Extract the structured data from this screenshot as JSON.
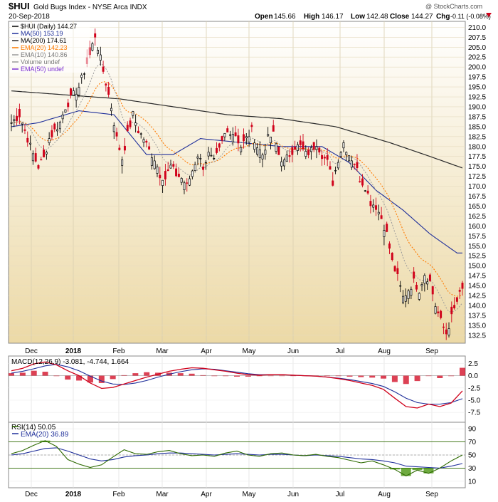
{
  "header": {
    "symbol": "$HUI",
    "name": "Gold Bugs Index - NYSE Arca INDX",
    "date": "20-Sep-2018",
    "brand": "@ StockCharts.com",
    "open_label": "Open",
    "open": "145.66",
    "high_label": "High",
    "high": "146.17",
    "low_label": "Low",
    "low": "142.48",
    "close_label": "Close",
    "close": "144.27",
    "chg_label": "Chg",
    "chg": "-0.11 (-0.08%)"
  },
  "colors": {
    "price_up": "#000000",
    "price_down": "#d0021b",
    "ma50": "#1f2f9a",
    "ma200": "#2a2a2a",
    "ema20": "#ff7a00",
    "ema10": "#9a9a9a",
    "macd": "#d0021b",
    "signal": "#1f2f9a",
    "histogram": "#d0021b",
    "rsi": "#2d6a00",
    "rsi_fill": "#3f8f00",
    "rsi_ema": "#1f2f9a",
    "price_bg_top": "#ffffff",
    "price_bg_bottom": "#ecd9a6"
  },
  "chart_data": [
    {
      "type": "candlestick",
      "title": "$HUI (Daily) 144.27",
      "x_labels": [
        "Dec",
        "2018",
        "Feb",
        "Mar",
        "Apr",
        "May",
        "Jun",
        "Jul",
        "Aug",
        "Sep"
      ],
      "y_ticks": [
        "132.5",
        "135.0",
        "137.5",
        "140.0",
        "142.5",
        "145.0",
        "147.5",
        "150.0",
        "152.5",
        "155.0",
        "157.5",
        "160.0",
        "162.5",
        "165.0",
        "167.5",
        "170.0",
        "172.5",
        "175.0",
        "177.5",
        "180.0",
        "182.5",
        "185.0",
        "187.5",
        "190.0",
        "192.5",
        "195.0",
        "197.5",
        "200.0",
        "202.5",
        "205.0",
        "207.5",
        "210.0"
      ],
      "ylim": [
        130.5,
        211.5
      ],
      "legend": [
        {
          "label": "$HUI (Daily) 144.27",
          "color": "#000000"
        },
        {
          "label": "MA(50) 153.19",
          "color": "#1f2f9a"
        },
        {
          "label": "MA(200) 174.61",
          "color": "#2a2a2a"
        },
        {
          "label": "EMA(20) 142.23",
          "color": "#ff7a00"
        },
        {
          "label": "EMA(10) 140.86",
          "color": "#9a9a9a"
        },
        {
          "label": "Volume undef",
          "color": "#9a9a9a"
        },
        {
          "label": "EMA(50) undef",
          "color": "#7b2fd0"
        }
      ],
      "close_anchors": [
        [
          0,
          186
        ],
        [
          3,
          188
        ],
        [
          5,
          184
        ],
        [
          8,
          178
        ],
        [
          10,
          175
        ],
        [
          12,
          177
        ],
        [
          14,
          182
        ],
        [
          16,
          184
        ],
        [
          18,
          186
        ],
        [
          20,
          190
        ],
        [
          23,
          193
        ],
        [
          25,
          195
        ],
        [
          27,
          199
        ],
        [
          29,
          203
        ],
        [
          31,
          208
        ],
        [
          33,
          202
        ],
        [
          35,
          196
        ],
        [
          37,
          190
        ],
        [
          39,
          182
        ],
        [
          41,
          177
        ],
        [
          43,
          183
        ],
        [
          45,
          188
        ],
        [
          47,
          184
        ],
        [
          49,
          182
        ],
        [
          51,
          179
        ],
        [
          53,
          177
        ],
        [
          55,
          173
        ],
        [
          57,
          172
        ],
        [
          59,
          175
        ],
        [
          61,
          173
        ],
        [
          63,
          172
        ],
        [
          65,
          170
        ],
        [
          67,
          174
        ],
        [
          69,
          178
        ],
        [
          71,
          175
        ],
        [
          73,
          178
        ],
        [
          75,
          176
        ],
        [
          77,
          179
        ],
        [
          79,
          183
        ],
        [
          81,
          184
        ],
        [
          83,
          183
        ],
        [
          85,
          180
        ],
        [
          87,
          182
        ],
        [
          89,
          184
        ],
        [
          91,
          180
        ],
        [
          93,
          178
        ],
        [
          95,
          182
        ],
        [
          97,
          183
        ],
        [
          99,
          178
        ],
        [
          101,
          176
        ],
        [
          103,
          178
        ],
        [
          105,
          180
        ],
        [
          107,
          180
        ],
        [
          109,
          178
        ],
        [
          111,
          179
        ],
        [
          113,
          181
        ],
        [
          115,
          178
        ],
        [
          117,
          176
        ],
        [
          119,
          171
        ],
        [
          121,
          177
        ],
        [
          123,
          181
        ],
        [
          125,
          178
        ],
        [
          127,
          176
        ],
        [
          129,
          172
        ],
        [
          131,
          170
        ],
        [
          133,
          166
        ],
        [
          135,
          165
        ],
        [
          137,
          162
        ],
        [
          139,
          158
        ],
        [
          141,
          151
        ],
        [
          143,
          147
        ],
        [
          145,
          142
        ],
        [
          147,
          144
        ],
        [
          149,
          146
        ],
        [
          151,
          144
        ],
        [
          153,
          148
        ],
        [
          155,
          146
        ],
        [
          157,
          140
        ],
        [
          159,
          136
        ],
        [
          161,
          133
        ],
        [
          163,
          137
        ],
        [
          165,
          141
        ],
        [
          167,
          144.27
        ]
      ],
      "ma50": [
        [
          0,
          185
        ],
        [
          10,
          186
        ],
        [
          25,
          189
        ],
        [
          38,
          188
        ],
        [
          50,
          178
        ],
        [
          60,
          178
        ],
        [
          70,
          182
        ],
        [
          85,
          181
        ],
        [
          100,
          180
        ],
        [
          115,
          180
        ],
        [
          125,
          176
        ],
        [
          135,
          169
        ],
        [
          145,
          164
        ],
        [
          155,
          158
        ],
        [
          165,
          153.2
        ]
      ],
      "ma200": [
        [
          0,
          194
        ],
        [
          20,
          193
        ],
        [
          40,
          192
        ],
        [
          60,
          190
        ],
        [
          80,
          188
        ],
        [
          100,
          187
        ],
        [
          120,
          185
        ],
        [
          140,
          181
        ],
        [
          155,
          177.5
        ],
        [
          167,
          174.6
        ]
      ],
      "ema20_last": 142.23,
      "ema10_last": 140.86
    },
    {
      "type": "line",
      "title": "MACD(12,26,9) -3.081, -4.744, 1.664",
      "y_ticks": [
        "2.5",
        "0.0",
        "-2.5",
        "-5.0",
        "-7.5"
      ],
      "ylim": [
        -9.5,
        4.0
      ],
      "series": [
        {
          "name": "MACD",
          "values": [
            1.0,
            1.5,
            2.4,
            2.8,
            2.2,
            1.0,
            0.0,
            -1.5,
            -2.6,
            -2.4,
            -1.7,
            -1.0,
            -0.3,
            0.3,
            0.9,
            1.3,
            1.6,
            1.5,
            1.2,
            0.9,
            0.5,
            0.2,
            0.1,
            0.2,
            0.2,
            0.1,
            0.0,
            -0.1,
            -0.3,
            -0.6,
            -1.0,
            -1.5,
            -2.0,
            -2.8,
            -4.6,
            -6.3,
            -6.6,
            -5.8,
            -6.3,
            -5.6,
            -3.1
          ]
        },
        {
          "name": "Signal",
          "values": [
            0.5,
            0.9,
            1.4,
            2.0,
            2.3,
            1.8,
            1.0,
            -0.1,
            -1.1,
            -1.7,
            -1.8,
            -1.5,
            -1.0,
            -0.3,
            0.3,
            0.8,
            1.2,
            1.4,
            1.3,
            1.0,
            0.7,
            0.4,
            0.2,
            0.2,
            0.2,
            0.1,
            0.0,
            -0.1,
            -0.3,
            -0.5,
            -0.8,
            -1.2,
            -1.6,
            -2.2,
            -3.3,
            -4.6,
            -5.5,
            -5.8,
            -5.8,
            -5.5,
            -4.7
          ]
        }
      ],
      "histogram_last": 1.664
    },
    {
      "type": "line",
      "title": "RSI(14) 50.05",
      "y_ticks": [
        "90",
        "70",
        "50",
        "30",
        "10"
      ],
      "ylim": [
        0,
        100
      ],
      "series": [
        {
          "name": "RSI",
          "values": [
            52,
            57,
            65,
            72,
            63,
            43,
            36,
            31,
            35,
            47,
            58,
            52,
            51,
            55,
            57,
            52,
            49,
            50,
            48,
            53,
            56,
            50,
            48,
            52,
            53,
            50,
            49,
            51,
            48,
            46,
            42,
            38,
            41,
            35,
            28,
            18,
            27,
            22,
            30,
            41,
            50
          ]
        },
        {
          "name": "EMA",
          "values": [
            50,
            52,
            56,
            60,
            61,
            56,
            50,
            44,
            41,
            43,
            47,
            49,
            50,
            52,
            53,
            53,
            52,
            51,
            50,
            51,
            52,
            51,
            50,
            51,
            51,
            50,
            49,
            50,
            49,
            48,
            46,
            44,
            43,
            41,
            38,
            33,
            32,
            31,
            30,
            33,
            37
          ]
        }
      ],
      "rsi_last": 50.05,
      "ema_label": "EMA(20) 36.89"
    }
  ]
}
